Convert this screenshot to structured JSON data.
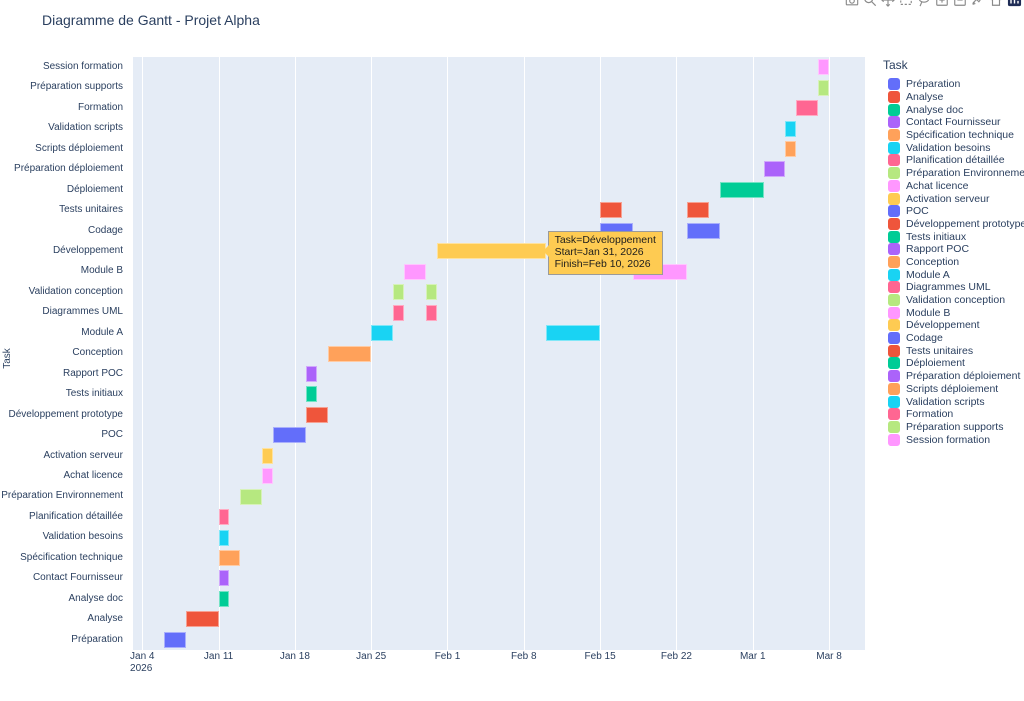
{
  "title": "Diagramme de Gantt - Projet Alpha",
  "modebar": {
    "icons": [
      "camera-download",
      "zoom-magnifier",
      "pan-arrows",
      "box-select",
      "lasso-select",
      "zoom-in",
      "zoom-out",
      "autoscale",
      "reset-home",
      "plotly-logo"
    ]
  },
  "axes": {
    "y_title": "Task",
    "x_ticks": [
      {
        "label": "Jan 4",
        "sublabel": "2026",
        "day": 0
      },
      {
        "label": "Jan 11",
        "day": 7
      },
      {
        "label": "Jan 18",
        "day": 14
      },
      {
        "label": "Jan 25",
        "day": 21
      },
      {
        "label": "Feb 1",
        "day": 28
      },
      {
        "label": "Feb 8",
        "day": 35
      },
      {
        "label": "Feb 15",
        "day": 42
      },
      {
        "label": "Feb 22",
        "day": 49
      },
      {
        "label": "Mar 1",
        "day": 56
      },
      {
        "label": "Mar 8",
        "day": 63
      }
    ]
  },
  "legend": {
    "title": "Task",
    "position": "right"
  },
  "tooltip": {
    "lines": [
      "Task=Développement",
      "Start=Jan 31, 2026",
      "Finish=Feb 10, 2026"
    ],
    "anchor_task": "Développement",
    "anchor_day": 37,
    "bg_color": "#FECB52"
  },
  "colors": {
    "plot_bg": "#E5ECF6",
    "grid": "#FFFFFF",
    "text": "#2a3f5f",
    "paper": "#FFFFFF"
  },
  "chart_data": {
    "type": "bar",
    "subtype": "gantt-timeline",
    "title": "Diagramme de Gantt - Projet Alpha",
    "xlabel": "",
    "ylabel": "Task",
    "x_axis_unit": "date",
    "x_range_days": [
      -0.85,
      66.3
    ],
    "day0_date": "Jan 4, 2026",
    "grid": true,
    "legend_position": "right",
    "row_order_note": "tasks listed first-to-last appear bottom-to-top on the chart",
    "tasks": [
      {
        "name": "Préparation",
        "color": "#636EFA",
        "segments": [
          {
            "start": "Jan 6, 2026",
            "finish": "Jan 8, 2026",
            "start_day": 2,
            "finish_day": 4
          }
        ]
      },
      {
        "name": "Analyse",
        "color": "#EF553B",
        "segments": [
          {
            "start": "Jan 8, 2026",
            "finish": "Jan 11, 2026",
            "start_day": 4,
            "finish_day": 7
          }
        ]
      },
      {
        "name": "Analyse doc",
        "color": "#00CC96",
        "segments": [
          {
            "start": "Jan 11, 2026",
            "finish": "Jan 12, 2026",
            "start_day": 7,
            "finish_day": 8
          }
        ]
      },
      {
        "name": "Contact Fournisseur",
        "color": "#AB63FA",
        "segments": [
          {
            "start": "Jan 11, 2026",
            "finish": "Jan 12, 2026",
            "start_day": 7,
            "finish_day": 8
          }
        ]
      },
      {
        "name": "Spécification technique",
        "color": "#FFA15A",
        "segments": [
          {
            "start": "Jan 11, 2026",
            "finish": "Jan 13, 2026",
            "start_day": 7,
            "finish_day": 9
          }
        ]
      },
      {
        "name": "Validation besoins",
        "color": "#19D3F3",
        "segments": [
          {
            "start": "Jan 11, 2026",
            "finish": "Jan 12, 2026",
            "start_day": 7,
            "finish_day": 8
          }
        ]
      },
      {
        "name": "Planification détaillée",
        "color": "#FF6692",
        "segments": [
          {
            "start": "Jan 11, 2026",
            "finish": "Jan 12, 2026",
            "start_day": 7,
            "finish_day": 8
          }
        ]
      },
      {
        "name": "Préparation Environnement",
        "color": "#B6E880",
        "segments": [
          {
            "start": "Jan 13, 2026",
            "finish": "Jan 15, 2026",
            "start_day": 9,
            "finish_day": 11
          }
        ]
      },
      {
        "name": "Achat licence",
        "color": "#FF97FF",
        "segments": [
          {
            "start": "Jan 15, 2026",
            "finish": "Jan 16, 2026",
            "start_day": 11,
            "finish_day": 12
          }
        ]
      },
      {
        "name": "Activation serveur",
        "color": "#FECB52",
        "segments": [
          {
            "start": "Jan 15, 2026",
            "finish": "Jan 16, 2026",
            "start_day": 11,
            "finish_day": 12
          }
        ]
      },
      {
        "name": "POC",
        "color": "#636EFA",
        "segments": [
          {
            "start": "Jan 16, 2026",
            "finish": "Jan 19, 2026",
            "start_day": 12,
            "finish_day": 15
          }
        ]
      },
      {
        "name": "Développement prototype",
        "color": "#EF553B",
        "segments": [
          {
            "start": "Jan 19, 2026",
            "finish": "Jan 21, 2026",
            "start_day": 15,
            "finish_day": 17
          }
        ]
      },
      {
        "name": "Tests initiaux",
        "color": "#00CC96",
        "segments": [
          {
            "start": "Jan 19, 2026",
            "finish": "Jan 20, 2026",
            "start_day": 15,
            "finish_day": 16
          }
        ]
      },
      {
        "name": "Rapport POC",
        "color": "#AB63FA",
        "segments": [
          {
            "start": "Jan 19, 2026",
            "finish": "Jan 20, 2026",
            "start_day": 15,
            "finish_day": 16
          }
        ]
      },
      {
        "name": "Conception",
        "color": "#FFA15A",
        "segments": [
          {
            "start": "Jan 21, 2026",
            "finish": "Jan 25, 2026",
            "start_day": 17,
            "finish_day": 21
          }
        ]
      },
      {
        "name": "Module A",
        "color": "#19D3F3",
        "segments": [
          {
            "start": "Jan 25, 2026",
            "finish": "Jan 27, 2026",
            "start_day": 21,
            "finish_day": 23
          },
          {
            "start": "Feb 10, 2026",
            "finish": "Feb 15, 2026",
            "start_day": 37,
            "finish_day": 42
          }
        ]
      },
      {
        "name": "Diagrammes UML",
        "color": "#FF6692",
        "segments": [
          {
            "start": "Jan 27, 2026",
            "finish": "Jan 28, 2026",
            "start_day": 23,
            "finish_day": 24
          },
          {
            "start": "Jan 30, 2026",
            "finish": "Jan 31, 2026",
            "start_day": 26,
            "finish_day": 27
          }
        ]
      },
      {
        "name": "Validation conception",
        "color": "#B6E880",
        "segments": [
          {
            "start": "Jan 27, 2026",
            "finish": "Jan 28, 2026",
            "start_day": 23,
            "finish_day": 24
          },
          {
            "start": "Jan 30, 2026",
            "finish": "Jan 31, 2026",
            "start_day": 26,
            "finish_day": 27
          }
        ]
      },
      {
        "name": "Module B",
        "color": "#FF97FF",
        "segments": [
          {
            "start": "Jan 28, 2026",
            "finish": "Jan 30, 2026",
            "start_day": 24,
            "finish_day": 26
          },
          {
            "start": "Feb 18, 2026",
            "finish": "Feb 23, 2026",
            "start_day": 45,
            "finish_day": 50
          }
        ]
      },
      {
        "name": "Développement",
        "color": "#FECB52",
        "segments": [
          {
            "start": "Jan 31, 2026",
            "finish": "Feb 10, 2026",
            "start_day": 27,
            "finish_day": 37
          }
        ]
      },
      {
        "name": "Codage",
        "color": "#636EFA",
        "segments": [
          {
            "start": "Feb 15, 2026",
            "finish": "Feb 18, 2026",
            "start_day": 42,
            "finish_day": 45
          },
          {
            "start": "Feb 23, 2026",
            "finish": "Feb 26, 2026",
            "start_day": 50,
            "finish_day": 53
          }
        ]
      },
      {
        "name": "Tests unitaires",
        "color": "#EF553B",
        "segments": [
          {
            "start": "Feb 15, 2026",
            "finish": "Feb 17, 2026",
            "start_day": 42,
            "finish_day": 44
          },
          {
            "start": "Feb 23, 2026",
            "finish": "Feb 25, 2026",
            "start_day": 50,
            "finish_day": 52
          }
        ]
      },
      {
        "name": "Déploiement",
        "color": "#00CC96",
        "segments": [
          {
            "start": "Feb 26, 2026",
            "finish": "Mar 2, 2026",
            "start_day": 53,
            "finish_day": 57
          }
        ]
      },
      {
        "name": "Préparation déploiement",
        "color": "#AB63FA",
        "segments": [
          {
            "start": "Mar 2, 2026",
            "finish": "Mar 4, 2026",
            "start_day": 57,
            "finish_day": 59
          }
        ]
      },
      {
        "name": "Scripts déploiement",
        "color": "#FFA15A",
        "segments": [
          {
            "start": "Mar 4, 2026",
            "finish": "Mar 5, 2026",
            "start_day": 59,
            "finish_day": 60
          }
        ]
      },
      {
        "name": "Validation scripts",
        "color": "#19D3F3",
        "segments": [
          {
            "start": "Mar 4, 2026",
            "finish": "Mar 5, 2026",
            "start_day": 59,
            "finish_day": 60
          }
        ]
      },
      {
        "name": "Formation",
        "color": "#FF6692",
        "segments": [
          {
            "start": "Mar 5, 2026",
            "finish": "Mar 7, 2026",
            "start_day": 60,
            "finish_day": 62
          }
        ]
      },
      {
        "name": "Préparation supports",
        "color": "#B6E880",
        "segments": [
          {
            "start": "Mar 7, 2026",
            "finish": "Mar 8, 2026",
            "start_day": 62,
            "finish_day": 63
          }
        ]
      },
      {
        "name": "Session formation",
        "color": "#FF97FF",
        "segments": [
          {
            "start": "Mar 7, 2026",
            "finish": "Mar 8, 2026",
            "start_day": 62,
            "finish_day": 63
          }
        ]
      }
    ]
  }
}
